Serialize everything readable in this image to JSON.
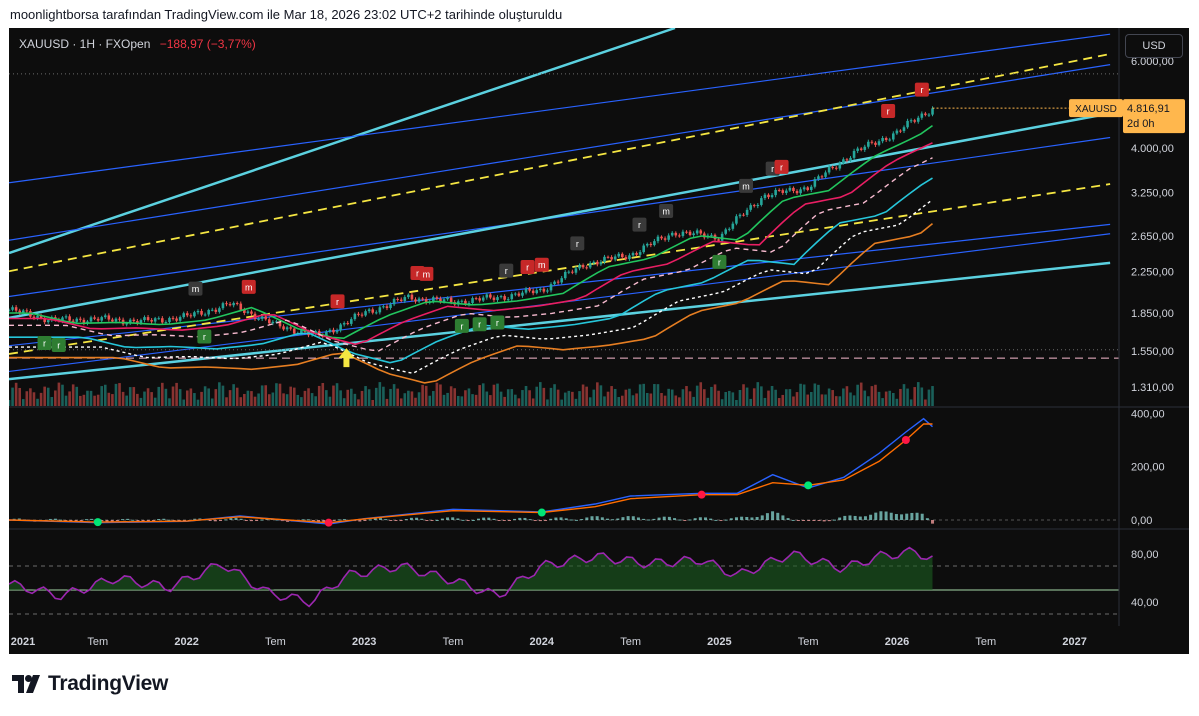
{
  "caption": "moonlightborsa tarafından TradingView.com ile Mar 18, 2026 23:02 UTC+2 tarihinde oluşturuldu",
  "header": {
    "symbol": "XAUUSD · 1H · FXOpen",
    "change": "−188,97 (−3,77%)",
    "currency_button": "USD"
  },
  "price_tag": {
    "symbol": "XAUUSD",
    "price": "4.816,91",
    "countdown": "2d 0h"
  },
  "brand": "TradingView",
  "colors": {
    "background": "#0d0d0d",
    "up": "#26a69a",
    "down": "#ef5350",
    "signal_red": "#f23645",
    "signal_green": "#22ab94",
    "channel_cyan": "#5bd1e0",
    "channel_blue": "#2962ff",
    "channel_yellow": "#f5e642",
    "macd_line": "#2962ff",
    "signal_line": "#ff6d00",
    "rsi_line": "#9c27b0",
    "price_tag": "#ffb74d"
  },
  "chart_data": [
    {
      "type": "candlestick",
      "panel": "price",
      "y_scale": "log",
      "ylim": [
        1200,
        7000
      ],
      "xlim": [
        2021.0,
        2027.25
      ],
      "y_ticks": [
        "6.000,00",
        "4.000,00",
        "3.250,00",
        "2.650,00",
        "2.250,00",
        "1.850,00",
        "1.550,00",
        "1.310,00"
      ],
      "y_tick_values": [
        6000,
        4000,
        3250,
        2650,
        2250,
        1850,
        1550,
        1310
      ],
      "last_price": 4816.91,
      "x": [
        2021.0,
        2021.25,
        2021.5,
        2021.75,
        2022.0,
        2022.25,
        2022.5,
        2022.75,
        2023.0,
        2023.25,
        2023.5,
        2023.75,
        2024.0,
        2024.25,
        2024.5,
        2024.75,
        2025.0,
        2025.25,
        2025.5,
        2025.75,
        2026.0,
        2026.2
      ],
      "close": [
        1880,
        1790,
        1800,
        1780,
        1820,
        1930,
        1750,
        1660,
        1850,
        1990,
        1950,
        1990,
        2060,
        2330,
        2430,
        2700,
        2640,
        3200,
        3330,
        3900,
        4300,
        4817
      ],
      "trend_lines": [
        {
          "style": "solid",
          "color": "cyan",
          "points": [
            [
              2021.0,
              2450
            ],
            [
              2024.75,
              7000
            ]
          ]
        },
        {
          "style": "solid",
          "color": "blue",
          "points": [
            [
              2021.0,
              3400
            ],
            [
              2027.2,
              6800
            ]
          ]
        },
        {
          "style": "solid",
          "color": "blue",
          "points": [
            [
              2021.0,
              2600
            ],
            [
              2027.2,
              5900
            ]
          ]
        },
        {
          "style": "dashed",
          "color": "yellow",
          "points": [
            [
              2021.0,
              2250
            ],
            [
              2027.2,
              6200
            ]
          ]
        },
        {
          "style": "solid",
          "color": "blue",
          "points": [
            [
              2021.0,
              2000
            ],
            [
              2027.2,
              4200
            ]
          ]
        },
        {
          "style": "solid",
          "color": "cyan",
          "points": [
            [
              2021.0,
              1810
            ],
            [
              2027.2,
              4700
            ]
          ]
        },
        {
          "style": "solid",
          "color": "blue",
          "points": [
            [
              2021.0,
              1590
            ],
            [
              2027.2,
              2800
            ]
          ]
        },
        {
          "style": "dashed",
          "color": "yellow",
          "points": [
            [
              2021.0,
              1530
            ],
            [
              2027.2,
              3380
            ]
          ]
        },
        {
          "style": "solid",
          "color": "blue",
          "points": [
            [
              2021.0,
              1410
            ],
            [
              2027.2,
              2680
            ]
          ]
        },
        {
          "style": "solid",
          "color": "cyan",
          "points": [
            [
              2021.0,
              1360
            ],
            [
              2027.2,
              2340
            ]
          ]
        }
      ],
      "horizontal_levels": [
        {
          "style": "dashed",
          "color": "pink",
          "value": 1500
        },
        {
          "style": "dotted",
          "color": "gray",
          "value": 5650
        },
        {
          "style": "dotted",
          "color": "gray",
          "value": 1560
        }
      ],
      "markers": [
        {
          "x": 2022.35,
          "label": "m",
          "color": "red"
        },
        {
          "x": 2022.05,
          "label": "m",
          "color": "gray"
        },
        {
          "x": 2022.85,
          "label": "r",
          "color": "red"
        },
        {
          "x": 2023.3,
          "label": "r",
          "color": "red"
        },
        {
          "x": 2023.35,
          "label": "m",
          "color": "red"
        },
        {
          "x": 2023.8,
          "label": "r",
          "color": "gray"
        },
        {
          "x": 2023.92,
          "label": "r",
          "color": "red"
        },
        {
          "x": 2024.0,
          "label": "m",
          "color": "red"
        },
        {
          "x": 2024.2,
          "label": "r",
          "color": "gray"
        },
        {
          "x": 2024.55,
          "label": "r",
          "color": "gray"
        },
        {
          "x": 2024.7,
          "label": "m",
          "color": "gray"
        },
        {
          "x": 2025.15,
          "label": "m",
          "color": "gray"
        },
        {
          "x": 2025.3,
          "label": "r",
          "color": "gray"
        },
        {
          "x": 2025.35,
          "label": "r",
          "color": "red"
        },
        {
          "x": 2025.95,
          "label": "r",
          "color": "red"
        },
        {
          "x": 2026.14,
          "label": "r",
          "color": "red"
        },
        {
          "x": 2022.1,
          "label": "r",
          "color": "green"
        },
        {
          "x": 2023.55,
          "label": "r",
          "color": "green"
        },
        {
          "x": 2023.65,
          "label": "r",
          "color": "green"
        },
        {
          "x": 2023.75,
          "label": "r",
          "color": "green"
        },
        {
          "x": 2025.0,
          "label": "r",
          "color": "green"
        },
        {
          "x": 2021.2,
          "label": "r",
          "color": "green"
        },
        {
          "x": 2021.28,
          "label": "r",
          "color": "green"
        }
      ]
    },
    {
      "type": "line",
      "panel": "macd",
      "ylim": [
        -30,
        420
      ],
      "y_ticks": [
        "400,00",
        "200,00",
        "0,00"
      ],
      "y_tick_values": [
        400,
        200,
        0
      ],
      "x": [
        2021.0,
        2021.5,
        2022.0,
        2022.3,
        2022.8,
        2023.0,
        2023.5,
        2024.0,
        2024.3,
        2024.5,
        2024.9,
        2025.1,
        2025.3,
        2025.5,
        2025.7,
        2025.9,
        2026.05,
        2026.15,
        2026.2
      ],
      "series": [
        {
          "name": "",
          "values": [
            0,
            -10,
            -5,
            15,
            -15,
            5,
            40,
            30,
            60,
            90,
            100,
            100,
            170,
            120,
            160,
            250,
            330,
            380,
            350
          ]
        },
        {
          "name": "",
          "values": [
            0,
            -8,
            -4,
            12,
            -10,
            4,
            35,
            28,
            50,
            80,
            95,
            95,
            140,
            130,
            150,
            220,
            300,
            360,
            360
          ]
        }
      ]
    },
    {
      "type": "line",
      "panel": "rsi",
      "ylim": [
        20,
        100
      ],
      "y_ticks": [
        "80,00",
        "40,00"
      ],
      "y_tick_values": [
        80,
        40
      ],
      "x": [
        2021.0,
        2021.3,
        2021.6,
        2021.9,
        2022.2,
        2022.45,
        2022.7,
        2022.9,
        2023.2,
        2023.5,
        2023.75,
        2024.0,
        2024.3,
        2024.6,
        2024.9,
        2025.1,
        2025.4,
        2025.7,
        2025.9,
        2026.1,
        2026.2
      ],
      "series": [
        {
          "name": "",
          "values": [
            55,
            45,
            60,
            52,
            72,
            48,
            40,
            62,
            70,
            58,
            45,
            70,
            78,
            72,
            75,
            62,
            80,
            68,
            78,
            82,
            76
          ]
        }
      ]
    }
  ],
  "x_axis": {
    "labels": [
      "2021",
      "Tem",
      "2022",
      "Tem",
      "2023",
      "Tem",
      "2024",
      "Tem",
      "2025",
      "Tem",
      "2026",
      "Tem",
      "2027"
    ],
    "label_values": [
      2021.0,
      2021.5,
      2022.0,
      2022.5,
      2023.0,
      2023.5,
      2024.0,
      2024.5,
      2025.0,
      2025.5,
      2026.0,
      2026.5,
      2027.0
    ]
  }
}
